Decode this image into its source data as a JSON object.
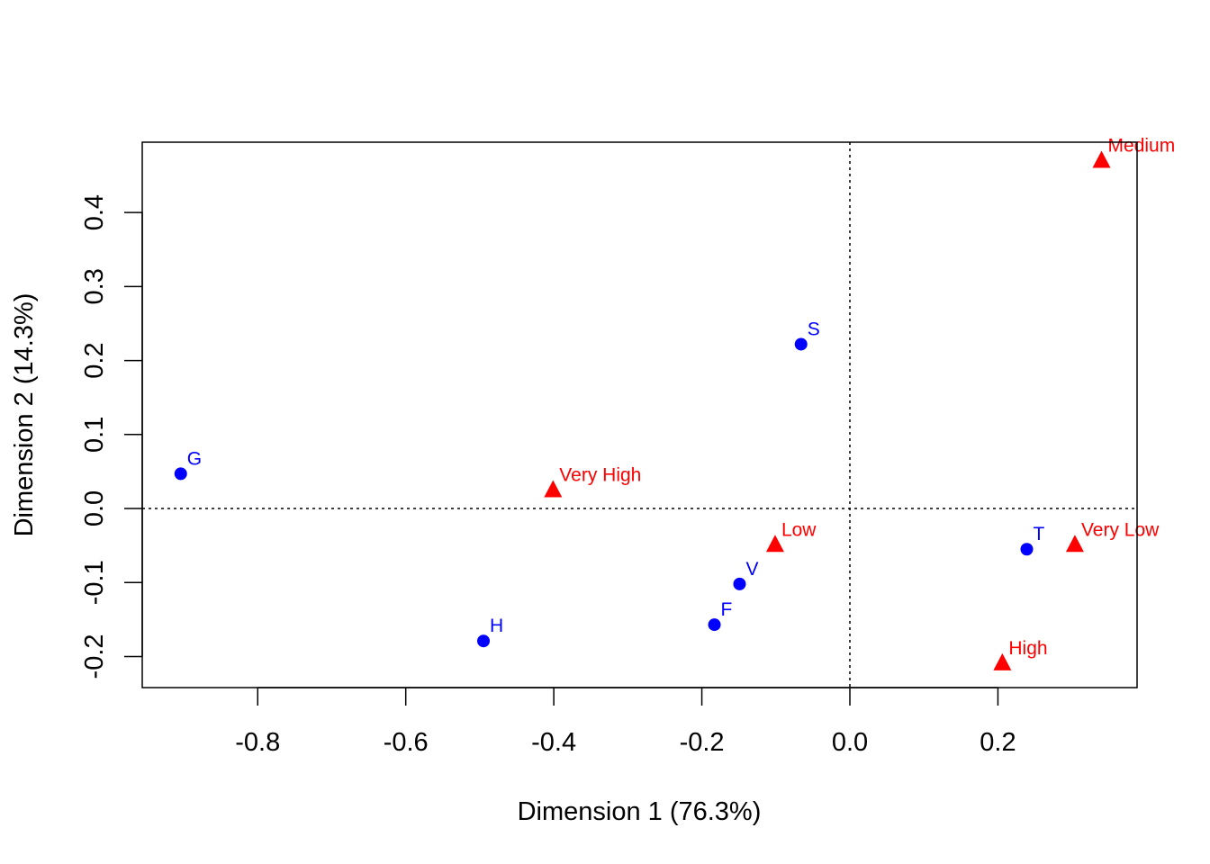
{
  "chart_data": {
    "type": "scatter",
    "xlabel": "Dimension 1 (76.3%)",
    "ylabel": "Dimension 2 (14.3%)",
    "xlim": [
      -0.956,
      0.388
    ],
    "ylim": [
      -0.242,
      0.495
    ],
    "xticks": [
      {
        "value": -0.8,
        "label": "-0.8"
      },
      {
        "value": -0.6,
        "label": "-0.6"
      },
      {
        "value": -0.4,
        "label": "-0.4"
      },
      {
        "value": -0.2,
        "label": "-0.2"
      },
      {
        "value": 0.0,
        "label": "0.0"
      },
      {
        "value": 0.2,
        "label": "0.2"
      }
    ],
    "yticks": [
      {
        "value": -0.2,
        "label": "-0.2"
      },
      {
        "value": -0.1,
        "label": "-0.1"
      },
      {
        "value": 0.0,
        "label": "0.0"
      },
      {
        "value": 0.1,
        "label": "0.1"
      },
      {
        "value": 0.2,
        "label": "0.2"
      },
      {
        "value": 0.3,
        "label": "0.3"
      },
      {
        "value": 0.4,
        "label": "0.4"
      }
    ],
    "reference_lines": {
      "x": 0.0,
      "y": 0.0,
      "style": "dotted"
    },
    "grid": false,
    "series": [
      {
        "marker": "circle",
        "color": "#0000FF",
        "points": [
          {
            "label": "G",
            "x": -0.904,
            "y": 0.047
          },
          {
            "label": "H",
            "x": -0.495,
            "y": -0.179
          },
          {
            "label": "F",
            "x": -0.183,
            "y": -0.157
          },
          {
            "label": "V",
            "x": -0.149,
            "y": -0.102
          },
          {
            "label": "S",
            "x": -0.066,
            "y": 0.222
          },
          {
            "label": "T",
            "x": 0.239,
            "y": -0.055
          }
        ]
      },
      {
        "marker": "triangle",
        "color": "#FF0000",
        "points": [
          {
            "label": "Very High",
            "x": -0.401,
            "y": 0.025
          },
          {
            "label": "Low",
            "x": -0.101,
            "y": -0.049
          },
          {
            "label": "Very Low",
            "x": 0.304,
            "y": -0.049
          },
          {
            "label": "High",
            "x": 0.206,
            "y": -0.209
          },
          {
            "label": "Medium",
            "x": 0.34,
            "y": 0.47
          }
        ]
      }
    ]
  }
}
